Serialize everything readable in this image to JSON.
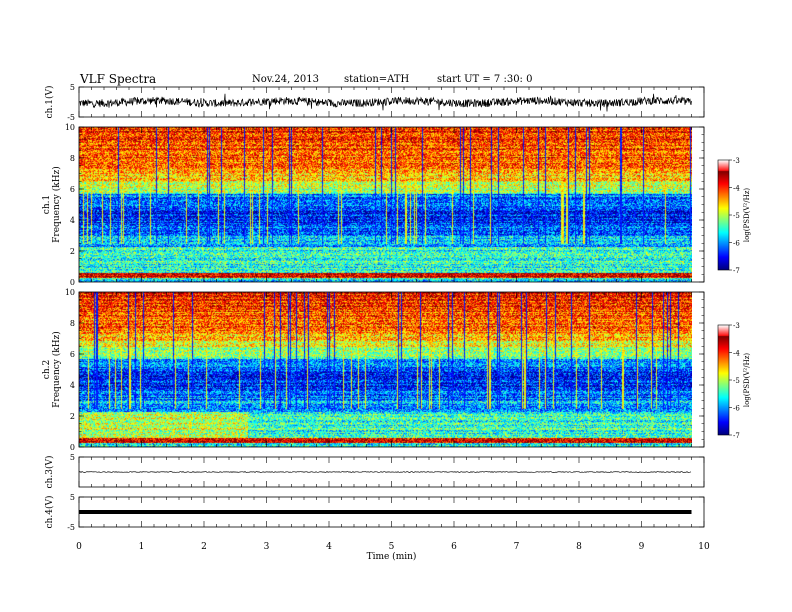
{
  "header": {
    "title": "VLF  Spectra",
    "date": "Nov.24, 2013",
    "station": "station=ATH",
    "start": "start  UT  =   7  :30: 0"
  },
  "chart_data": [
    {
      "type": "line",
      "panel": "ch1-waveform",
      "ylabel": "ch.1(V)",
      "yticks": [
        "5",
        "-5"
      ],
      "ylim": [
        -5,
        5
      ]
    },
    {
      "type": "heatmap",
      "panel": "ch1-spectrogram",
      "ylabel_channel": "ch.1",
      "ylabel": "Frequency (kHz)",
      "yticks": [
        "0",
        "2",
        "4",
        "6",
        "8",
        "10"
      ],
      "ylim": [
        0,
        10
      ],
      "colorbar": {
        "label": "log(PSD(V²/Hz)",
        "ticks": [
          "-3",
          "-4",
          "-5",
          "-6",
          "-7"
        ],
        "range": [
          -7,
          -3
        ]
      }
    },
    {
      "type": "heatmap",
      "panel": "ch2-spectrogram",
      "ylabel_channel": "ch.2",
      "ylabel": "Frequency (kHz)",
      "yticks": [
        "0",
        "2",
        "4",
        "6",
        "8",
        "10"
      ],
      "ylim": [
        0,
        10
      ],
      "colorbar": {
        "label": "log(PSD(V²/Hz)",
        "ticks": [
          "-3",
          "-4",
          "-5",
          "-6",
          "-7"
        ],
        "range": [
          -7,
          -3
        ]
      }
    },
    {
      "type": "line",
      "panel": "ch3-waveform",
      "ylabel": "ch.3(V)",
      "yticks": [
        "5"
      ],
      "ylim": [
        -5,
        5
      ]
    },
    {
      "type": "line",
      "panel": "ch4-waveform",
      "ylabel": "ch.4(V)",
      "yticks": [
        "5",
        "-5"
      ],
      "ylim": [
        -5,
        5
      ]
    }
  ],
  "xaxis": {
    "label": "Time  (min)",
    "ticks": [
      "0",
      "1",
      "2",
      "3",
      "4",
      "5",
      "6",
      "7",
      "8",
      "9",
      "10"
    ],
    "xlim": [
      0,
      10
    ],
    "data_end_min": 9.8
  }
}
